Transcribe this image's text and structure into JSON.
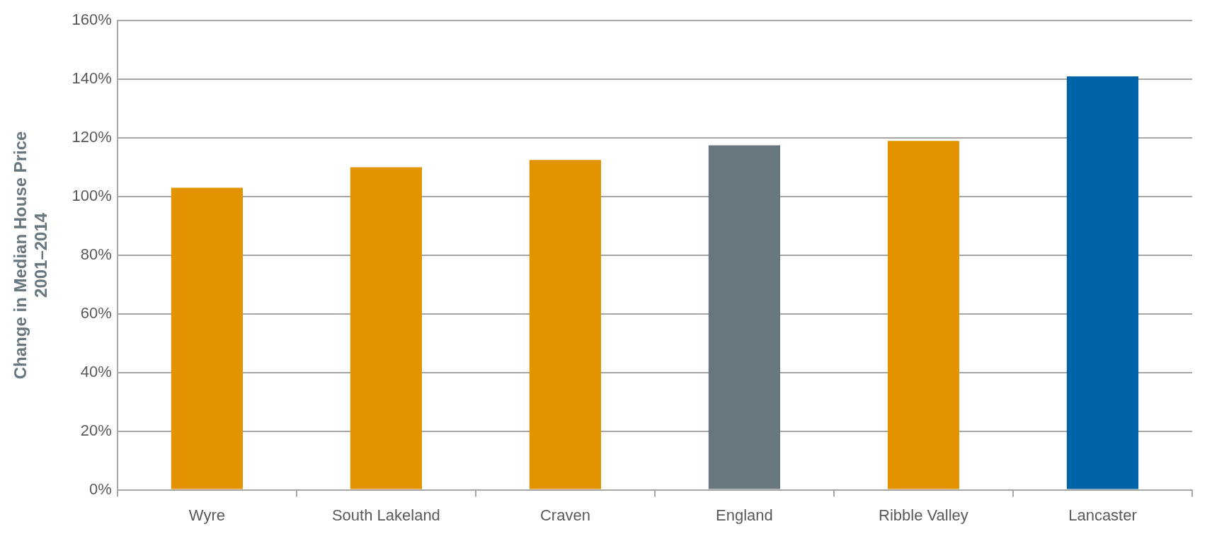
{
  "chart_data": {
    "type": "bar",
    "ylabel": "Change in Median House Price\n2001–2014",
    "categories": [
      "Wyre",
      "South Lakeland",
      "Craven",
      "England",
      "Ribble Valley",
      "Lancaster"
    ],
    "values": [
      103,
      110,
      112.5,
      117.5,
      119,
      141
    ],
    "colors": [
      "#e39300",
      "#e39300",
      "#e39300",
      "#67767f",
      "#e39300",
      "#0063a8"
    ],
    "ylim": [
      0,
      160
    ],
    "yticks": [
      {
        "value": 0,
        "label": "0%"
      },
      {
        "value": 20,
        "label": "20%"
      },
      {
        "value": 40,
        "label": "40%"
      },
      {
        "value": 60,
        "label": "60%"
      },
      {
        "value": 80,
        "label": "80%"
      },
      {
        "value": 100,
        "label": "100%"
      },
      {
        "value": 120,
        "label": "120%"
      },
      {
        "value": 140,
        "label": "140%"
      },
      {
        "value": 160,
        "label": "160%"
      }
    ],
    "grid": "y",
    "legend": false
  }
}
